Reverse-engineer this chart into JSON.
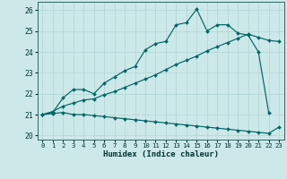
{
  "xlabel": "Humidex (Indice chaleur)",
  "xlim": [
    -0.5,
    23.5
  ],
  "ylim": [
    19.8,
    26.4
  ],
  "xticks": [
    0,
    1,
    2,
    3,
    4,
    5,
    6,
    7,
    8,
    9,
    10,
    11,
    12,
    13,
    14,
    15,
    16,
    17,
    18,
    19,
    20,
    21,
    22,
    23
  ],
  "yticks": [
    20,
    21,
    22,
    23,
    24,
    25,
    26
  ],
  "bg_color": "#cce8e8",
  "grid_color": "#b0d4d4",
  "line_color": "#006666",
  "line1_x": [
    0,
    1,
    2,
    3,
    4,
    5,
    6,
    7,
    8,
    9,
    10,
    11,
    12,
    13,
    14,
    15,
    16,
    17,
    18,
    19,
    20,
    21,
    22
  ],
  "line1_y": [
    21.0,
    21.1,
    21.8,
    22.2,
    22.2,
    22.0,
    22.5,
    22.8,
    23.1,
    23.3,
    24.1,
    24.4,
    24.5,
    25.3,
    25.4,
    26.05,
    25.0,
    25.3,
    25.3,
    24.9,
    24.8,
    24.0,
    21.1
  ],
  "line2_x": [
    0,
    1,
    2,
    3,
    4,
    5,
    6,
    7,
    8,
    9,
    10,
    11,
    12,
    13,
    14,
    15,
    16,
    17,
    18,
    19,
    20,
    21,
    22,
    23
  ],
  "line2_y": [
    21.0,
    21.15,
    21.4,
    21.55,
    21.7,
    21.75,
    21.95,
    22.1,
    22.3,
    22.5,
    22.7,
    22.9,
    23.15,
    23.4,
    23.6,
    23.8,
    24.05,
    24.25,
    24.45,
    24.65,
    24.85,
    24.7,
    24.55,
    24.5
  ],
  "line3_x": [
    0,
    1,
    2,
    3,
    4,
    5,
    6,
    7,
    8,
    9,
    10,
    11,
    12,
    13,
    14,
    15,
    16,
    17,
    18,
    19,
    20,
    21,
    22,
    23
  ],
  "line3_y": [
    21.0,
    21.05,
    21.1,
    21.0,
    21.0,
    20.95,
    20.9,
    20.85,
    20.8,
    20.75,
    20.7,
    20.65,
    20.6,
    20.55,
    20.5,
    20.45,
    20.4,
    20.35,
    20.3,
    20.25,
    20.2,
    20.15,
    20.1,
    20.4
  ]
}
